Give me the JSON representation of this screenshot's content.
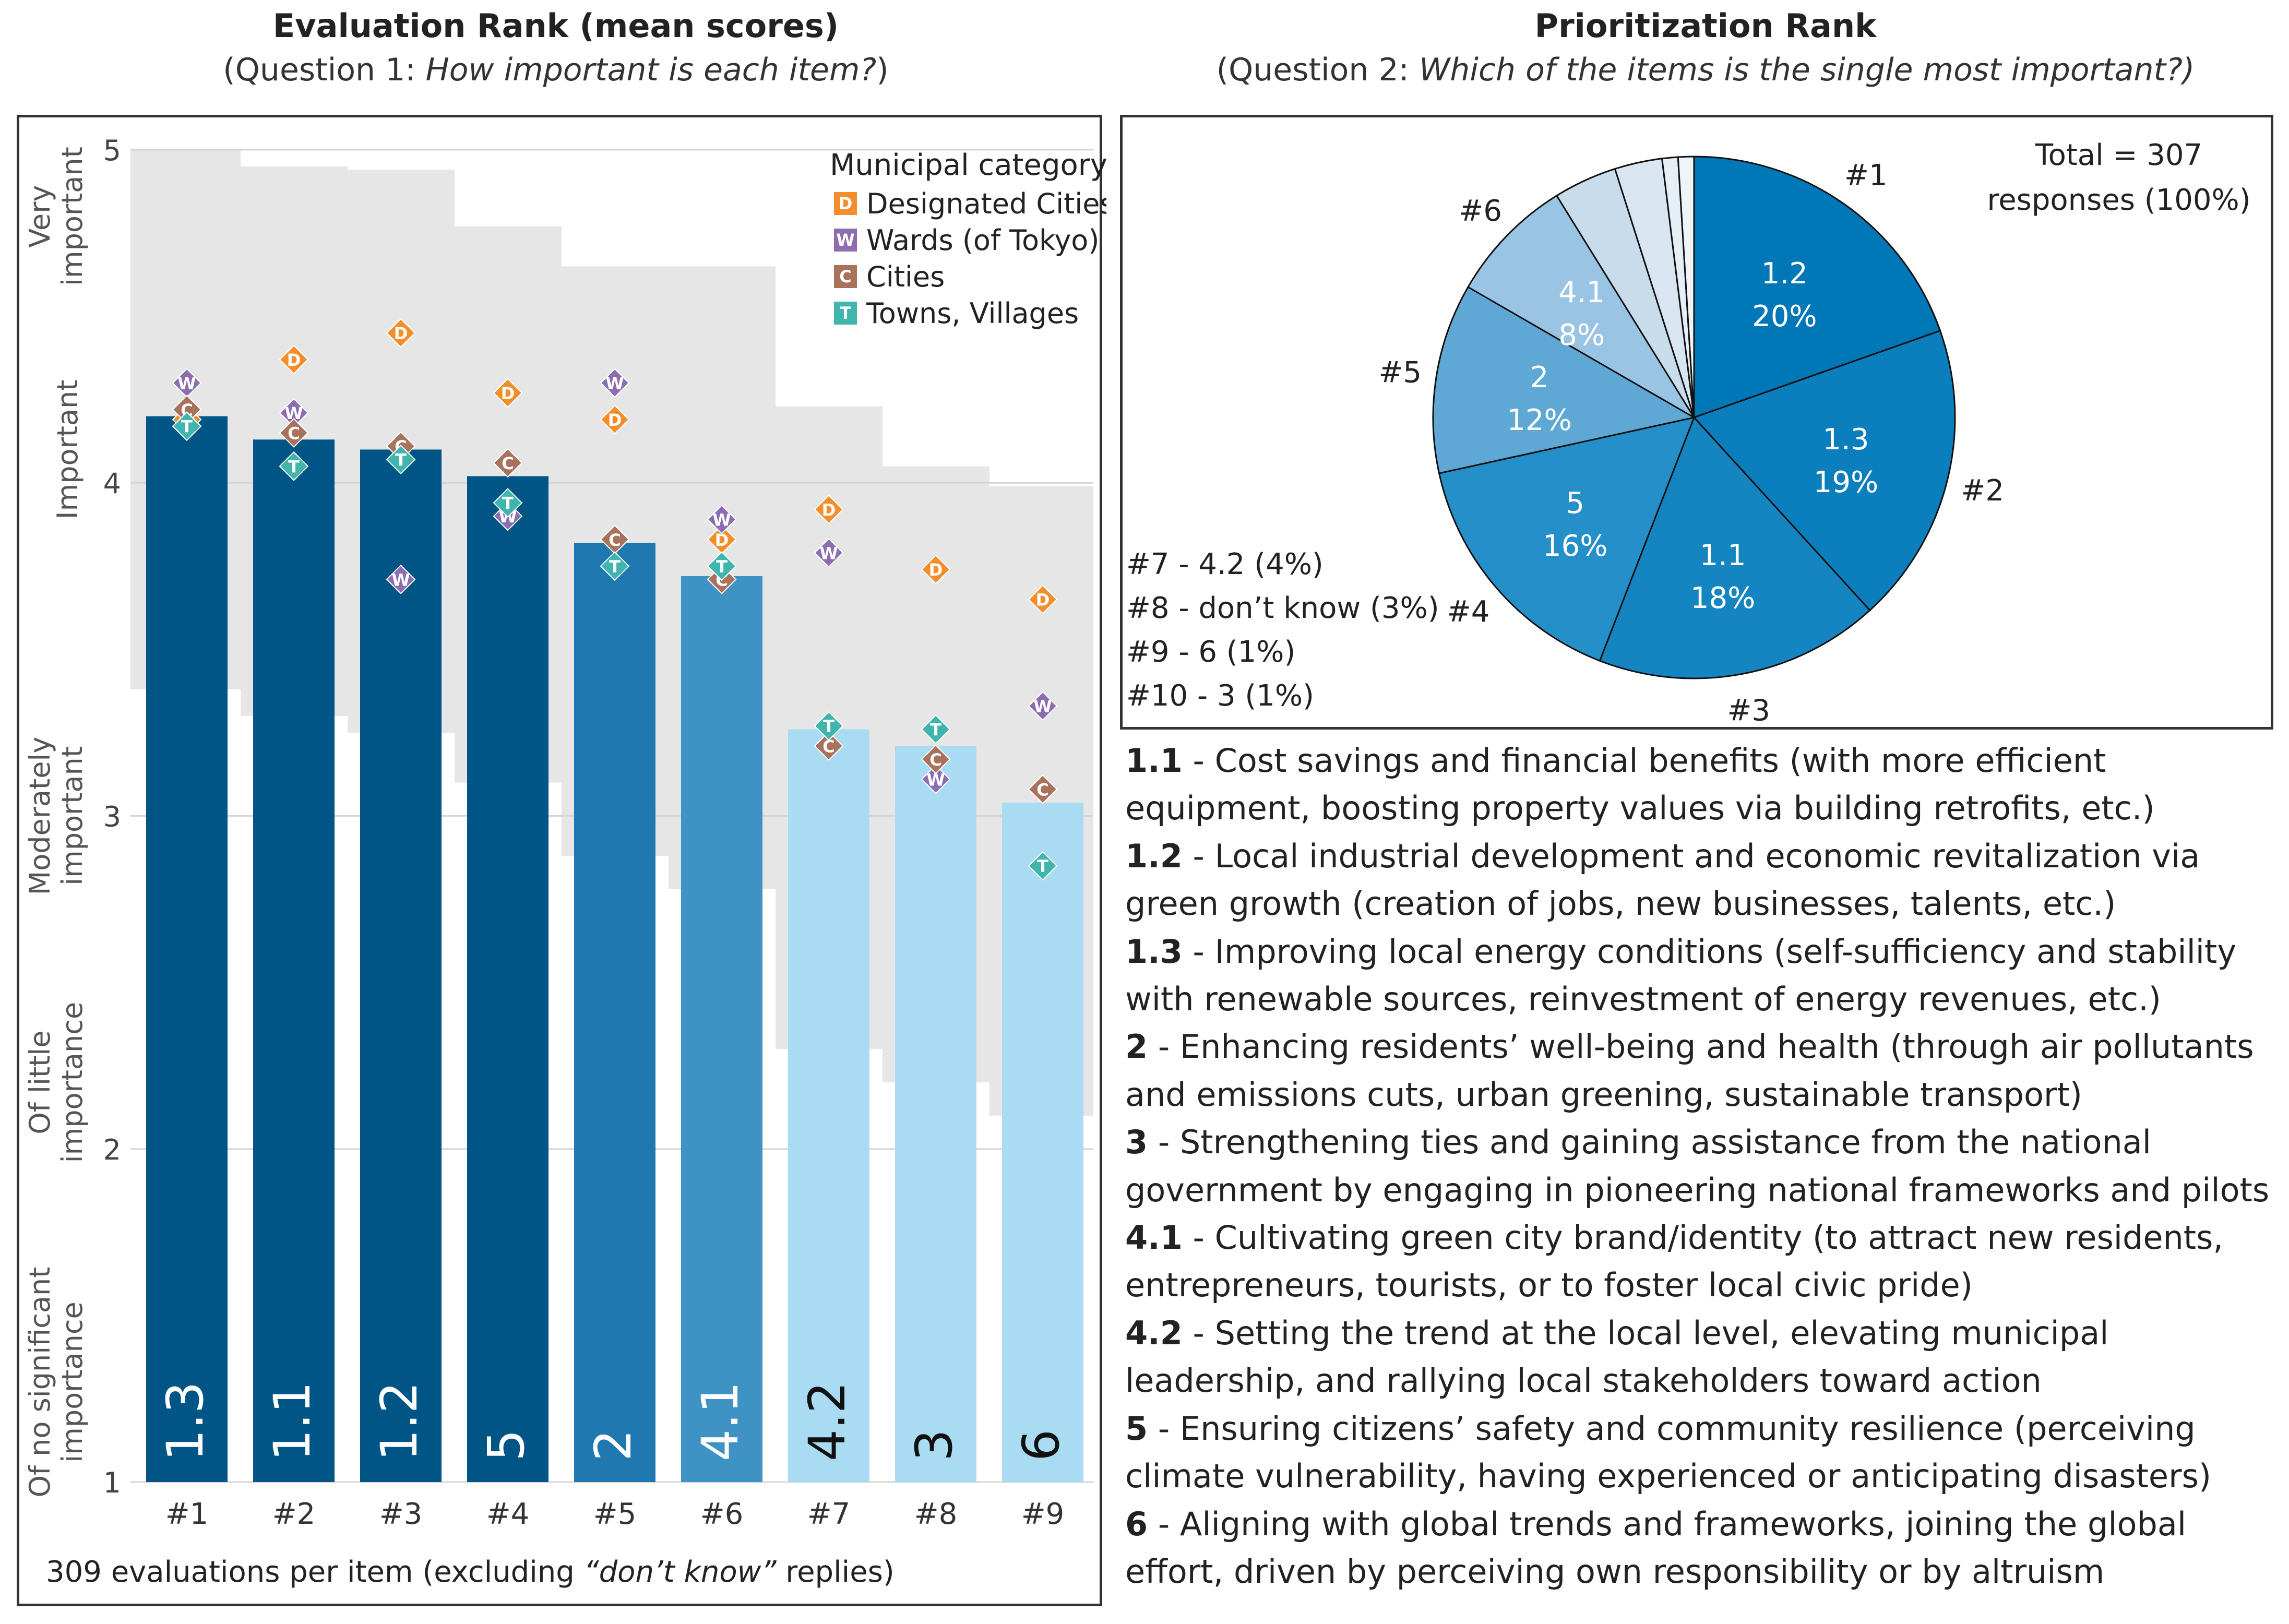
{
  "left_title": {
    "main": "Evaluation Rank (mean scores)",
    "sub_prefix": "(Question 1: ",
    "sub_question": "How important is each item?",
    "sub_suffix": ")"
  },
  "right_title": {
    "main": "Prioritization Rank",
    "sub_prefix": "(Question 2: ",
    "sub_question": "Which of the items is the single most important?)"
  },
  "colors": {
    "bar_dark": "#005587",
    "bar_mid": "#1f78b0",
    "bar_mid2": "#3f93c4",
    "bar_light": "#a9dbf2",
    "designated_cities": "#f28e2b",
    "wards": "#8b6db0",
    "cities": "#a9725a",
    "towns_villages": "#3fb5ae",
    "range_band": "#e6e6e6"
  },
  "bar_footnote": {
    "prefix": "309 evaluations per item (excluding ",
    "quoted": "“don’t know”",
    "suffix": " replies)"
  },
  "chart_data": [
    {
      "type": "bar",
      "title": "Evaluation Rank (mean scores)",
      "ylim": [
        1,
        5
      ],
      "yticks": [
        1,
        2,
        3,
        4,
        5
      ],
      "ytick_labels": [
        "1",
        "2",
        "3",
        "4",
        "5"
      ],
      "ylevel_labels": [
        {
          "value": 1.3,
          "lines": [
            "Of no significant",
            "importance"
          ]
        },
        {
          "value": 2.2,
          "lines": [
            "Of little",
            "importance"
          ]
        },
        {
          "value": 3.0,
          "lines": [
            "Moderately",
            "important"
          ]
        },
        {
          "value": 4.1,
          "lines": [
            "Important"
          ]
        },
        {
          "value": 4.8,
          "lines": [
            "Very",
            "important"
          ]
        }
      ],
      "categories": [
        "#1",
        "#2",
        "#3",
        "#4",
        "#5",
        "#6",
        "#7",
        "#8",
        "#9"
      ],
      "bar_labels": [
        "1.3",
        "1.1",
        "1.2",
        "5",
        "2",
        "4.1",
        "4.2",
        "3",
        "6"
      ],
      "values": [
        4.2,
        4.13,
        4.1,
        4.02,
        3.82,
        3.72,
        3.26,
        3.21,
        3.04
      ],
      "bar_color_keys": [
        "bar_dark",
        "bar_dark",
        "bar_dark",
        "bar_dark",
        "bar_mid",
        "bar_mid2",
        "bar_light",
        "bar_light",
        "bar_light"
      ],
      "bar_label_color_keys": [
        "light",
        "light",
        "light",
        "light",
        "light",
        "light",
        "dark",
        "dark",
        "dark"
      ],
      "range_band": {
        "upper": [
          5.0,
          4.95,
          4.94,
          4.77,
          4.65,
          4.65,
          4.23,
          4.05,
          3.99
        ],
        "lower": [
          3.38,
          3.3,
          3.25,
          3.1,
          2.88,
          2.78,
          2.3,
          2.2,
          2.1
        ]
      },
      "legend": {
        "title": "Municipal category",
        "position": "top-right",
        "entries": [
          {
            "marker": "D",
            "label": "Designated Cities",
            "color_key": "designated_cities"
          },
          {
            "marker": "W",
            "label": "Wards (of Tokyo)",
            "color_key": "wards"
          },
          {
            "marker": "C",
            "label": "Cities",
            "color_key": "cities"
          },
          {
            "marker": "T",
            "label": "Towns, Villages",
            "color_key": "towns_villages"
          }
        ]
      },
      "series": [
        {
          "name": "Designated Cities",
          "marker": "D",
          "color_key": "designated_cities",
          "values": [
            4.19,
            4.37,
            4.45,
            4.27,
            4.19,
            3.83,
            3.92,
            3.74,
            3.65
          ]
        },
        {
          "name": "Wards (of Tokyo)",
          "marker": "W",
          "color_key": "wards",
          "values": [
            4.3,
            4.21,
            3.71,
            3.9,
            4.3,
            3.89,
            3.79,
            3.11,
            3.33
          ]
        },
        {
          "name": "Cities",
          "marker": "C",
          "color_key": "cities",
          "values": [
            4.22,
            4.15,
            4.11,
            4.06,
            3.83,
            3.71,
            3.21,
            3.17,
            3.08
          ]
        },
        {
          "name": "Towns, Villages",
          "marker": "T",
          "color_key": "towns_villages",
          "values": [
            4.17,
            4.05,
            4.07,
            3.94,
            3.75,
            3.75,
            3.27,
            3.26,
            2.85
          ]
        }
      ]
    },
    {
      "type": "pie",
      "title": "Prioritization Rank",
      "total_label_lines": [
        "Total = 307",
        "responses (100%)"
      ],
      "slices": [
        {
          "rank": "#1",
          "item": "1.2",
          "percent": 20,
          "pct_label": "20%",
          "color": "#0077b6",
          "labeled": true
        },
        {
          "rank": "#2",
          "item": "1.3",
          "percent": 19,
          "pct_label": "19%",
          "color": "#0b7fbd",
          "labeled": true
        },
        {
          "rank": "#3",
          "item": "1.1",
          "percent": 18,
          "pct_label": "18%",
          "color": "#1585c2",
          "labeled": true
        },
        {
          "rank": "#4",
          "item": "5",
          "percent": 16,
          "pct_label": "16%",
          "color": "#258fc9",
          "labeled": true
        },
        {
          "rank": "#5",
          "item": "2",
          "percent": 12,
          "pct_label": "12%",
          "color": "#5fa8d6",
          "labeled": true
        },
        {
          "rank": "#6",
          "item": "4.1",
          "percent": 8,
          "pct_label": "8%",
          "color": "#9ac4e3",
          "labeled": true
        },
        {
          "rank": "#7",
          "item": "4.2",
          "percent": 4,
          "pct_label": "4%",
          "color": "#c9dcec",
          "labeled": false
        },
        {
          "rank": "#8",
          "item": "don’t know",
          "percent": 3,
          "pct_label": "3%",
          "color": "#d9e6f1",
          "labeled": false
        },
        {
          "rank": "#9",
          "item": "6",
          "percent": 1,
          "pct_label": "1%",
          "color": "#e6eef6",
          "labeled": false
        },
        {
          "rank": "#10",
          "item": "3",
          "percent": 1,
          "pct_label": "1%",
          "color": "#f0f4f9",
          "labeled": false
        }
      ],
      "other_lines": [
        "#7 - 4.2 (4%)",
        "#8 - don’t know (3%)",
        "#9 - 6 (1%)",
        "#10 - 3 (1%)"
      ]
    }
  ],
  "descriptions": [
    {
      "id": "1.1",
      "text": " - Cost savings and financial benefits (with more efficient equipment, boosting property values via building retrofits, etc.)"
    },
    {
      "id": "1.2",
      "text": " - Local industrial development and economic revitalization via green growth (creation of jobs, new businesses, talents, etc.)"
    },
    {
      "id": "1.3",
      "text": " - Improving local energy conditions (self-sufficiency and stability with renewable sources, reinvestment of energy revenues, etc.)"
    },
    {
      "id": "2",
      "text": " - Enhancing residents’ well-being and health (through air pollutants and emissions cuts, urban greening, sustainable transport)"
    },
    {
      "id": "3",
      "text": " - Strengthening ties and gaining assistance from the national government by engaging in pioneering national frameworks and pilots"
    },
    {
      "id": "4.1",
      "text": " - Cultivating green city brand/identity (to attract new residents, entrepreneurs, tourists, or to foster local civic pride)"
    },
    {
      "id": "4.2",
      "text": " - Setting the trend at the local level, elevating municipal leadership, and rallying local stakeholders toward action"
    },
    {
      "id": "5",
      "text": " - Ensuring citizens’ safety and community resilience (perceiving climate vulnerability, having experienced or anticipating disasters)"
    },
    {
      "id": "6",
      "text": " - Aligning with global trends and frameworks, joining the global effort, driven by perceiving own responsibility or by altruism"
    }
  ]
}
